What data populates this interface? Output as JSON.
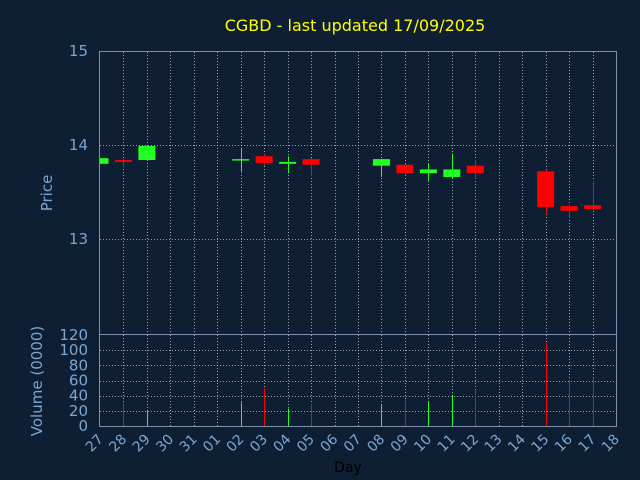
{
  "chart_data": [
    {
      "type": "candlestick",
      "title": "CGBD - last updated 17/09/2025",
      "ylabel": "Price",
      "ylim": [
        13,
        15
      ],
      "yticks": [
        "13",
        "14",
        "15"
      ],
      "grid": true,
      "categories": [
        "27",
        "28",
        "29",
        "30",
        "31",
        "01",
        "02",
        "03",
        "04",
        "05",
        "06",
        "07",
        "08",
        "09",
        "10",
        "11",
        "12",
        "13",
        "14",
        "15",
        "16",
        "17",
        "18"
      ],
      "candles": [
        {
          "day": "27",
          "open": 13.8,
          "high": 13.86,
          "low": 13.8,
          "close": 13.86
        },
        {
          "day": "28",
          "open": 13.84,
          "high": 13.85,
          "low": 13.76,
          "close": 13.82
        },
        {
          "day": "29",
          "open": 13.84,
          "high": 14.0,
          "low": 13.84,
          "close": 13.99
        },
        {
          "day": "02",
          "open": 13.84,
          "high": 13.97,
          "low": 13.72,
          "close": 13.85
        },
        {
          "day": "03",
          "open": 13.88,
          "high": 13.9,
          "low": 13.78,
          "close": 13.81
        },
        {
          "day": "04",
          "open": 13.8,
          "high": 13.88,
          "low": 13.7,
          "close": 13.82
        },
        {
          "day": "05",
          "open": 13.85,
          "high": 13.86,
          "low": 13.67,
          "close": 13.79
        },
        {
          "day": "08",
          "open": 13.78,
          "high": 13.85,
          "low": 13.66,
          "close": 13.85
        },
        {
          "day": "09",
          "open": 13.79,
          "high": 13.8,
          "low": 13.69,
          "close": 13.7
        },
        {
          "day": "10",
          "open": 13.7,
          "high": 13.8,
          "low": 13.62,
          "close": 13.74
        },
        {
          "day": "11",
          "open": 13.66,
          "high": 13.91,
          "low": 13.64,
          "close": 13.74
        },
        {
          "day": "12",
          "open": 13.78,
          "high": 13.84,
          "low": 13.64,
          "close": 13.7
        },
        {
          "day": "15",
          "open": 13.72,
          "high": 13.74,
          "low": 13.26,
          "close": 13.34
        },
        {
          "day": "16",
          "open": 13.35,
          "high": 13.36,
          "low": 13.22,
          "close": 13.3
        },
        {
          "day": "17",
          "open": 13.36,
          "high": 13.62,
          "low": 13.3,
          "close": 13.32
        }
      ],
      "colors": {
        "up": "#22ff22",
        "down": "#ff0000",
        "background": "#0f1f33",
        "frame": "#7f8fb0",
        "title": "#ffff00",
        "label": "#7aa6d6"
      }
    },
    {
      "type": "bar",
      "title": "",
      "xlabel": "Day",
      "ylabel": "Volume (0000)",
      "ylim": [
        0,
        120
      ],
      "yticks": [
        "0",
        "20",
        "40",
        "60",
        "80",
        "100",
        "120"
      ],
      "grid": true,
      "series": [
        {
          "values": [
            {
              "day": "28",
              "volume": 31,
              "direction": "down"
            },
            {
              "day": "29",
              "volume": 20,
              "direction": "up"
            },
            {
              "day": "02",
              "volume": 31,
              "direction": "up"
            },
            {
              "day": "03",
              "volume": 50,
              "direction": "down"
            },
            {
              "day": "04",
              "volume": 23,
              "direction": "up"
            },
            {
              "day": "05",
              "volume": 29,
              "direction": "down"
            },
            {
              "day": "08",
              "volume": 29,
              "direction": "up"
            },
            {
              "day": "09",
              "volume": 35,
              "direction": "down"
            },
            {
              "day": "10",
              "volume": 33,
              "direction": "up"
            },
            {
              "day": "11",
              "volume": 41,
              "direction": "up"
            },
            {
              "day": "12",
              "volume": 48,
              "direction": "down"
            },
            {
              "day": "15",
              "volume": 110,
              "direction": "down"
            },
            {
              "day": "16",
              "volume": 61,
              "direction": "down"
            },
            {
              "day": "17",
              "volume": 64,
              "direction": "down"
            }
          ]
        }
      ]
    }
  ]
}
